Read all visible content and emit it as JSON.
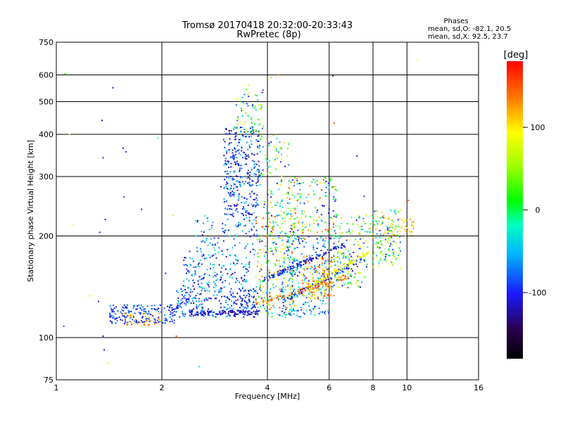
{
  "chart_data": {
    "type": "scatter",
    "title": "Tromsø 20170418 20:32:00-20:33:43",
    "subtitle": "RwPretec (8p)",
    "xlabel": "Frequency [MHz]",
    "ylabel": "Stationary phase Virtual Height [km]",
    "x_scale": "log",
    "y_scale": "log",
    "xlim": [
      1,
      16
    ],
    "ylim": [
      75,
      750
    ],
    "grid": true,
    "x_ticks": [
      1,
      2,
      4,
      6,
      8,
      10,
      16
    ],
    "x_tick_labels": [
      "1",
      "2",
      "4",
      "6",
      "8",
      "10",
      "16"
    ],
    "y_ticks": [
      75,
      100,
      200,
      300,
      400,
      500,
      600,
      750
    ],
    "y_tick_labels": [
      "75",
      "100",
      "200",
      "300",
      "400",
      "500",
      "600",
      "750"
    ],
    "colorbar": {
      "label": "[deg]",
      "min": -180,
      "max": 180,
      "ticks": [
        100,
        0,
        -100
      ],
      "tick_labels": [
        "100",
        "0",
        "-100"
      ]
    },
    "info": {
      "heading": "Phases",
      "line1": "mean, sd,O: -82.1, 20.5",
      "line2": "mean, sd,X:  92.5, 23.7"
    },
    "points": [
      [
        1.05,
        108,
        -80
      ],
      [
        1.06,
        605,
        20
      ],
      [
        1.09,
        400,
        100
      ],
      [
        1.12,
        215,
        100
      ],
      [
        1.25,
        133,
        100
      ],
      [
        1.32,
        128,
        -100
      ],
      [
        1.33,
        205,
        -100
      ],
      [
        1.36,
        101,
        -110
      ],
      [
        1.37,
        92,
        -130
      ],
      [
        1.36,
        341,
        -100
      ],
      [
        1.35,
        440,
        -110
      ],
      [
        1.38,
        224,
        -100
      ],
      [
        1.41,
        84,
        100
      ],
      [
        1.45,
        550,
        -110
      ],
      [
        1.55,
        364,
        -100
      ],
      [
        1.56,
        261,
        -90
      ],
      [
        1.58,
        355,
        -90
      ],
      [
        1.75,
        240,
        -100
      ],
      [
        1.95,
        390,
        -20
      ],
      [
        2.05,
        155,
        -100
      ],
      [
        2.15,
        230,
        100
      ],
      [
        2.2,
        101,
        150
      ],
      [
        2.55,
        82,
        -40
      ],
      [
        2.4,
        180,
        -100
      ],
      [
        2.6,
        165,
        -120
      ],
      [
        2.95,
        280,
        -110
      ],
      [
        3.45,
        128,
        -100
      ],
      [
        4.1,
        590,
        110
      ],
      [
        4.3,
        600,
        130
      ],
      [
        6.15,
        597,
        -140
      ],
      [
        6.2,
        432,
        150
      ],
      [
        10.1,
        255,
        150
      ],
      [
        10.7,
        662,
        90
      ],
      [
        7.2,
        345,
        -120
      ],
      [
        7.55,
        262,
        -90
      ]
    ],
    "clusters": [
      {
        "x": [
          1.42,
          2.2
        ],
        "y": [
          110,
          125
        ],
        "n": 180,
        "c": [
          -120,
          -60
        ],
        "extra": 10
      },
      {
        "x": [
          1.55,
          2.0
        ],
        "y": [
          108,
          118
        ],
        "n": 40,
        "c": [
          90,
          160
        ],
        "extra": 0
      },
      {
        "x": [
          2.2,
          3.7
        ],
        "y": [
          115,
          140
        ],
        "n": 260,
        "c": [
          -130,
          -40
        ],
        "extra": 10
      },
      {
        "x": [
          2.3,
          3.6
        ],
        "y": [
          140,
          175
        ],
        "n": 150,
        "c": [
          -130,
          -20
        ],
        "extra": 0
      },
      {
        "x": [
          2.5,
          3.7
        ],
        "y": [
          175,
          230
        ],
        "n": 100,
        "c": [
          -120,
          -20
        ],
        "extra": 10
      },
      {
        "x": [
          3.0,
          3.8
        ],
        "y": [
          230,
          420
        ],
        "n": 320,
        "c": [
          -130,
          -40
        ],
        "extra": 10
      },
      {
        "x": [
          3.2,
          3.9
        ],
        "y": [
          400,
          560
        ],
        "n": 70,
        "c": [
          -130,
          120
        ],
        "extra": 0
      },
      {
        "x": [
          3.7,
          4.8
        ],
        "y": [
          115,
          230
        ],
        "n": 280,
        "c": [
          -130,
          160
        ],
        "extra": 0
      },
      {
        "x": [
          3.8,
          4.6
        ],
        "y": [
          230,
          400
        ],
        "n": 90,
        "c": [
          -120,
          120
        ],
        "extra": 0
      },
      {
        "x": [
          4.4,
          6.0
        ],
        "y": [
          115,
          200
        ],
        "n": 240,
        "c": [
          -120,
          -10
        ],
        "extra": 0
      },
      {
        "x": [
          4.6,
          6.3
        ],
        "y": [
          195,
          300
        ],
        "n": 160,
        "c": [
          -110,
          170
        ],
        "extra": 0
      },
      {
        "x": [
          5.0,
          6.2
        ],
        "y": [
          130,
          175
        ],
        "n": 140,
        "c": [
          80,
          170
        ],
        "extra": 0
      },
      {
        "x": [
          6.0,
          7.6
        ],
        "y": [
          140,
          230
        ],
        "n": 170,
        "c": [
          -120,
          120
        ],
        "extra": 0
      },
      {
        "x": [
          7.6,
          9.6
        ],
        "y": [
          160,
          240
        ],
        "n": 140,
        "c": [
          -110,
          110
        ],
        "extra": 0
      },
      {
        "x": [
          8.5,
          10.5
        ],
        "y": [
          200,
          230
        ],
        "n": 40,
        "c": [
          90,
          130
        ],
        "extra": 0
      }
    ],
    "bands": [
      {
        "f0": 3.9,
        "h0": 148,
        "f1": 6.6,
        "h1": 188,
        "n": 110,
        "c": [
          -130,
          -80
        ]
      },
      {
        "f0": 4.4,
        "h0": 128,
        "f1": 7.4,
        "h1": 170,
        "n": 90,
        "c": [
          -130,
          -60
        ]
      },
      {
        "f0": 5.2,
        "h0": 140,
        "f1": 7.8,
        "h1": 180,
        "n": 80,
        "c": [
          70,
          110
        ]
      },
      {
        "f0": 3.7,
        "h0": 125,
        "f1": 6.8,
        "h1": 152,
        "n": 90,
        "c": [
          100,
          170
        ]
      },
      {
        "f0": 2.4,
        "h0": 118,
        "f1": 3.8,
        "h1": 119,
        "n": 90,
        "c": [
          -130,
          -100
        ]
      }
    ]
  }
}
